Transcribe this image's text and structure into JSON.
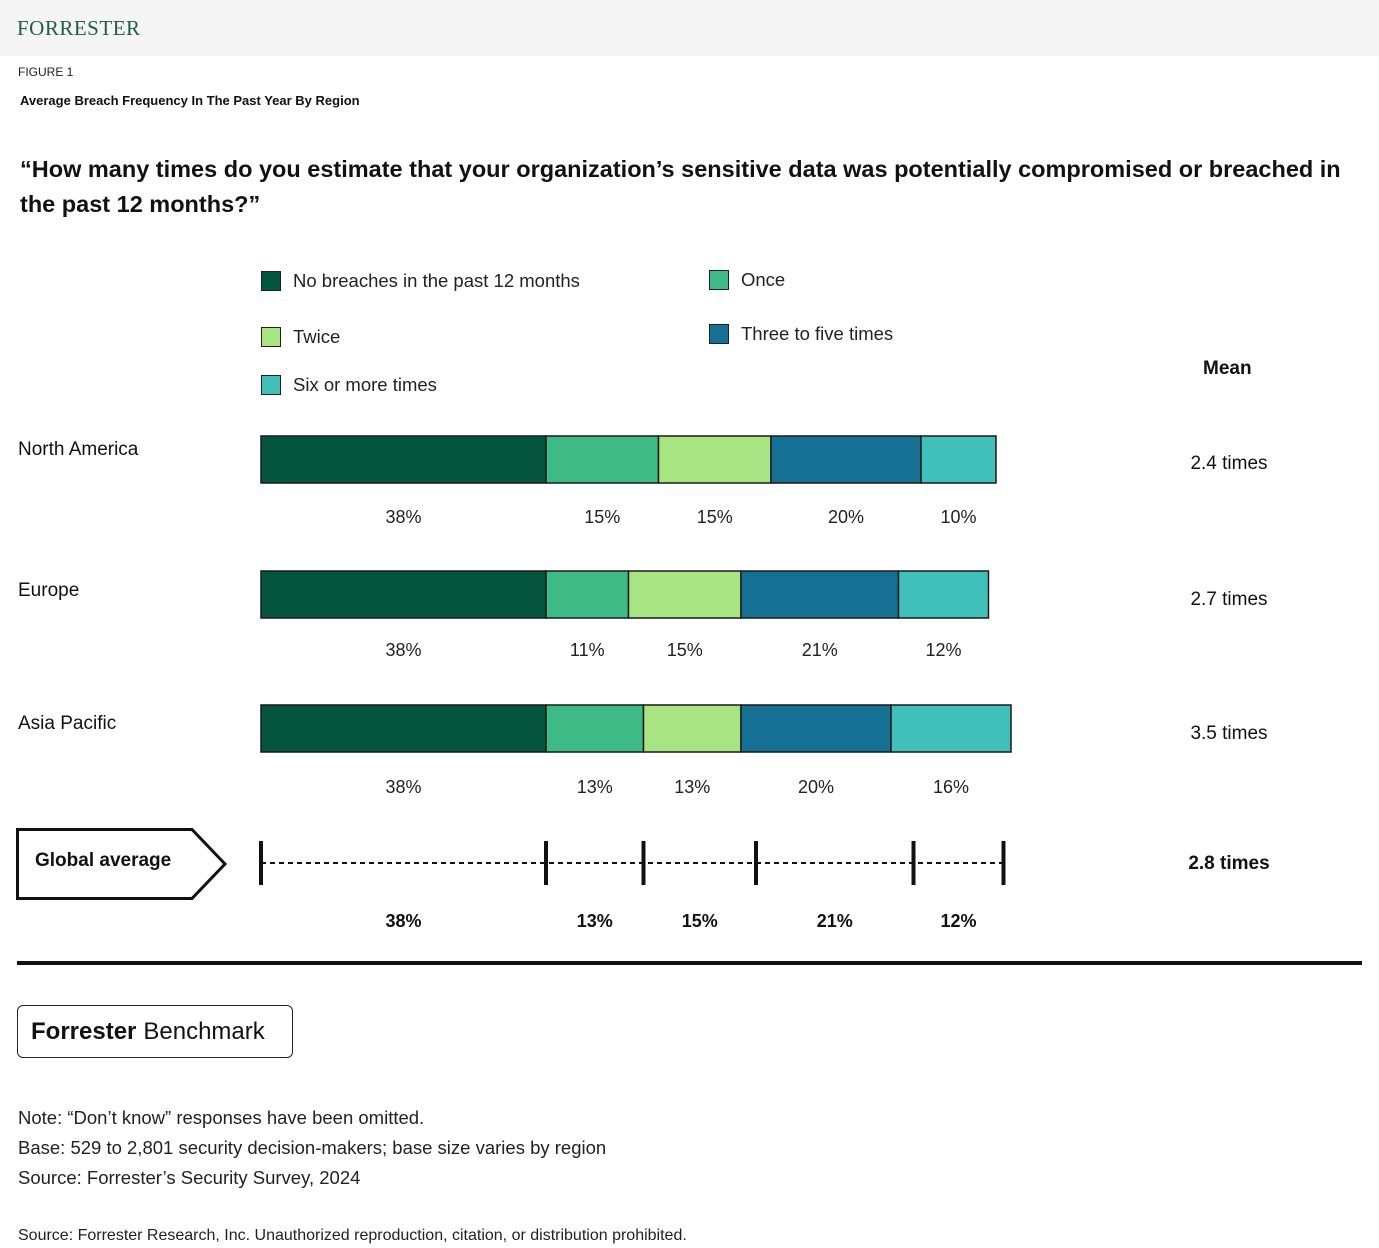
{
  "header": {
    "logo_text": "FORRESTER"
  },
  "figure": {
    "label": "FIGURE 1",
    "title": "Average Breach Frequency In The Past Year By Region",
    "question": "“How many times do you estimate that your organization’s sensitive data was potentially compromised or breached in the past 12 months?”"
  },
  "chart_data": {
    "type": "bar",
    "orientation": "horizontal",
    "stacked": true,
    "unit": "%",
    "categories": [
      "North America",
      "Europe",
      "Asia Pacific"
    ],
    "series": [
      {
        "name": "No breaches in the past 12 months",
        "color": "#03553d",
        "values": [
          38,
          38,
          38
        ]
      },
      {
        "name": "Once",
        "color": "#3dba86",
        "values": [
          15,
          11,
          13
        ]
      },
      {
        "name": "Twice",
        "color": "#a8e482",
        "values": [
          15,
          15,
          13
        ]
      },
      {
        "name": "Three to five times",
        "color": "#167094",
        "values": [
          20,
          21,
          20
        ]
      },
      {
        "name": "Six or more times",
        "color": "#41c0b9",
        "values": [
          10,
          12,
          16
        ]
      }
    ],
    "mean_header": "Mean",
    "means": [
      "2.4 times",
      "2.7 times",
      "3.5 times"
    ],
    "global_average": {
      "label": "Global average",
      "values": [
        38,
        13,
        15,
        21,
        12
      ],
      "mean": "2.8 times"
    },
    "legend_position": "top"
  },
  "benchmark": {
    "brand": "Forrester",
    "label": "Benchmark"
  },
  "notes": {
    "note": "Note: “Don’t know” responses have been omitted.",
    "base": "Base: 529 to 2,801 security decision-makers; base size varies by region",
    "source": "Source: Forrester’s Security Survey, 2024"
  },
  "footer": "Source: Forrester Research, Inc. Unauthorized reproduction, citation, or distribution prohibited."
}
